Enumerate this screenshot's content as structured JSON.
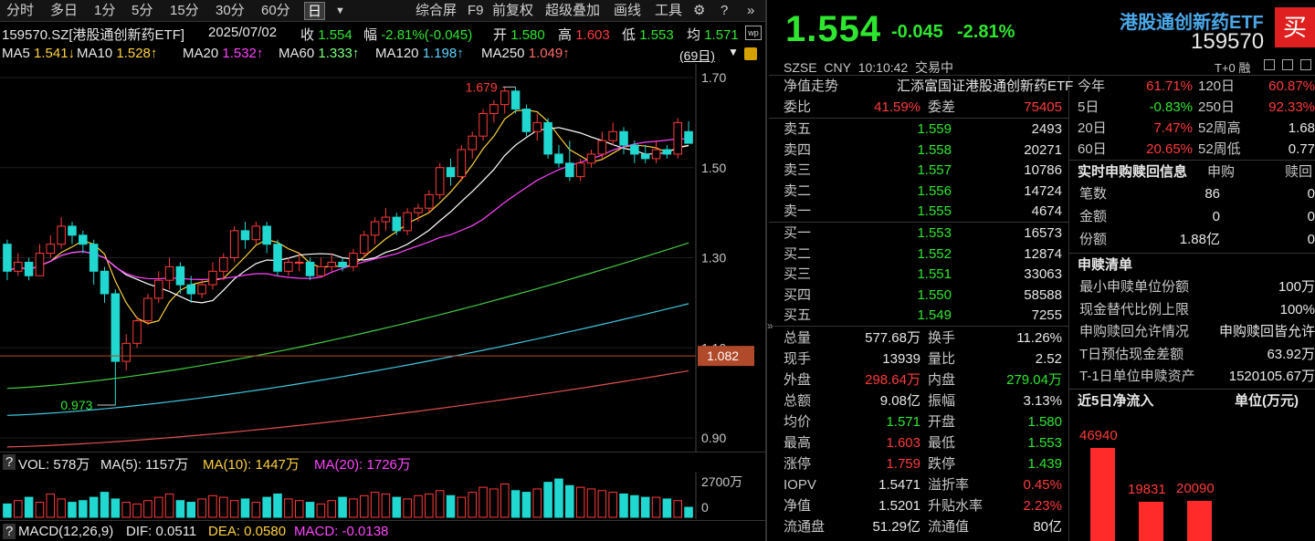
{
  "toolbar": {
    "tabs": [
      "分时",
      "多日",
      "1分",
      "5分",
      "15分",
      "30分",
      "60分",
      "日"
    ],
    "active": "日",
    "dropdown_icon": "triangle-down",
    "right": [
      "综合屏",
      "F9",
      "前复权",
      "超级叠加",
      "画线",
      "工具"
    ]
  },
  "info": {
    "code": "159570.SZ[港股通创新药ETF]",
    "date": "2025/07/02",
    "close_label": "收",
    "close": "1.554",
    "chg_label": "幅",
    "chg": "-2.81%(-0.045)",
    "open_label": "开",
    "open": "1.580",
    "high_label": "高",
    "high": "1.603",
    "low_label": "低",
    "low": "1.553",
    "avg_label": "均",
    "avg": "1.571"
  },
  "ma": [
    {
      "label": "MA5",
      "value": "1.541↓",
      "color": "#ffd23c"
    },
    {
      "label": "MA10",
      "value": "1.528↑",
      "color": "#ffd23c"
    },
    {
      "label": "MA20",
      "value": "1.532↑",
      "color": "#ff44ff"
    },
    {
      "label": "MA60",
      "value": "1.333↑",
      "color": "#7cff7c"
    },
    {
      "label": "MA120",
      "value": "1.198↑",
      "color": "#5fd3ff"
    },
    {
      "label": "MA250",
      "value": "1.049↑",
      "color": "#ff6b6b"
    }
  ],
  "period_badge": "(69日)",
  "chart": {
    "y_ticks": [
      "1.70",
      "1.50",
      "1.30",
      "1.10",
      "0.90"
    ],
    "high_mark": "1.679",
    "low_mark": "0.973",
    "price_line": "1.082"
  },
  "chart_data": {
    "type": "candlestick",
    "ylim": [
      0.9,
      1.72
    ],
    "candles": [
      [
        1.33,
        1.27,
        1.34,
        1.25
      ],
      [
        1.27,
        1.29,
        1.31,
        1.26
      ],
      [
        1.29,
        1.26,
        1.3,
        1.25
      ],
      [
        1.26,
        1.31,
        1.33,
        1.26
      ],
      [
        1.31,
        1.33,
        1.35,
        1.3
      ],
      [
        1.33,
        1.37,
        1.39,
        1.32
      ],
      [
        1.37,
        1.35,
        1.38,
        1.33
      ],
      [
        1.35,
        1.33,
        1.36,
        1.31
      ],
      [
        1.33,
        1.27,
        1.34,
        1.24
      ],
      [
        1.27,
        1.22,
        1.28,
        1.2
      ],
      [
        1.22,
        1.07,
        1.23,
        0.973
      ],
      [
        1.07,
        1.11,
        1.13,
        1.05
      ],
      [
        1.11,
        1.16,
        1.17,
        1.1
      ],
      [
        1.16,
        1.21,
        1.22,
        1.15
      ],
      [
        1.21,
        1.25,
        1.27,
        1.2
      ],
      [
        1.25,
        1.28,
        1.3,
        1.23
      ],
      [
        1.28,
        1.24,
        1.29,
        1.22
      ],
      [
        1.24,
        1.22,
        1.26,
        1.2
      ],
      [
        1.22,
        1.24,
        1.25,
        1.21
      ],
      [
        1.24,
        1.27,
        1.29,
        1.23
      ],
      [
        1.27,
        1.3,
        1.31,
        1.25
      ],
      [
        1.3,
        1.36,
        1.37,
        1.29
      ],
      [
        1.36,
        1.34,
        1.38,
        1.32
      ],
      [
        1.34,
        1.37,
        1.38,
        1.33
      ],
      [
        1.37,
        1.33,
        1.38,
        1.31
      ],
      [
        1.33,
        1.27,
        1.34,
        1.26
      ],
      [
        1.27,
        1.29,
        1.3,
        1.26
      ],
      [
        1.29,
        1.29,
        1.31,
        1.27
      ],
      [
        1.29,
        1.26,
        1.3,
        1.25
      ],
      [
        1.26,
        1.28,
        1.3,
        1.26
      ],
      [
        1.28,
        1.29,
        1.31,
        1.27
      ],
      [
        1.29,
        1.28,
        1.3,
        1.27
      ],
      [
        1.28,
        1.31,
        1.32,
        1.27
      ],
      [
        1.31,
        1.35,
        1.36,
        1.3
      ],
      [
        1.35,
        1.38,
        1.39,
        1.33
      ],
      [
        1.38,
        1.39,
        1.41,
        1.36
      ],
      [
        1.39,
        1.36,
        1.4,
        1.35
      ],
      [
        1.36,
        1.4,
        1.41,
        1.35
      ],
      [
        1.4,
        1.41,
        1.42,
        1.38
      ],
      [
        1.41,
        1.44,
        1.45,
        1.4
      ],
      [
        1.44,
        1.5,
        1.51,
        1.43
      ],
      [
        1.5,
        1.48,
        1.52,
        1.46
      ],
      [
        1.48,
        1.54,
        1.55,
        1.47
      ],
      [
        1.54,
        1.57,
        1.58,
        1.52
      ],
      [
        1.57,
        1.62,
        1.63,
        1.56
      ],
      [
        1.62,
        1.64,
        1.65,
        1.6
      ],
      [
        1.64,
        1.67,
        1.68,
        1.62
      ],
      [
        1.67,
        1.63,
        1.679,
        1.62
      ],
      [
        1.63,
        1.58,
        1.64,
        1.57
      ],
      [
        1.58,
        1.6,
        1.62,
        1.56
      ],
      [
        1.6,
        1.53,
        1.61,
        1.52
      ],
      [
        1.53,
        1.51,
        1.55,
        1.5
      ],
      [
        1.51,
        1.48,
        1.56,
        1.47
      ],
      [
        1.48,
        1.51,
        1.52,
        1.47
      ],
      [
        1.51,
        1.53,
        1.54,
        1.5
      ],
      [
        1.53,
        1.56,
        1.58,
        1.52
      ],
      [
        1.56,
        1.58,
        1.6,
        1.55
      ],
      [
        1.58,
        1.55,
        1.59,
        1.53
      ],
      [
        1.55,
        1.53,
        1.56,
        1.51
      ],
      [
        1.53,
        1.52,
        1.55,
        1.51
      ],
      [
        1.52,
        1.54,
        1.56,
        1.51
      ],
      [
        1.54,
        1.53,
        1.55,
        1.52
      ],
      [
        1.53,
        1.6,
        1.61,
        1.52
      ],
      [
        1.58,
        1.554,
        1.603,
        1.553
      ]
    ],
    "ma_lines": [
      {
        "name": "MA5",
        "color": "#ffd23c"
      },
      {
        "name": "MA10",
        "color": "#ffffff"
      },
      {
        "name": "MA20",
        "color": "#ff44ff"
      },
      {
        "name": "MA60",
        "color": "#44cc44",
        "from": 1.01,
        "to": 1.333
      },
      {
        "name": "MA120",
        "color": "#40c8e0",
        "from": 0.95,
        "to": 1.198
      },
      {
        "name": "MA250",
        "color": "#e05050",
        "from": 0.88,
        "to": 1.049
      }
    ],
    "volume": {
      "ylabel_top": "2700万",
      "ylabel_zero": "0",
      "values": [
        8,
        10,
        12,
        9,
        14,
        11,
        9,
        10,
        12,
        15,
        11,
        9,
        8,
        10,
        12,
        14,
        10,
        9,
        11,
        13,
        12,
        10,
        11,
        9,
        12,
        14,
        11,
        10,
        9,
        8,
        10,
        12,
        11,
        13,
        15,
        14,
        12,
        11,
        13,
        14,
        16,
        13,
        12,
        15,
        18,
        17,
        20,
        16,
        15,
        17,
        21,
        23,
        19,
        18,
        17,
        16,
        15,
        14,
        13,
        12,
        12,
        11,
        10,
        6
      ],
      "down_flags": [
        1,
        0,
        1,
        0,
        0,
        0,
        1,
        1,
        1,
        1,
        1,
        0,
        0,
        0,
        0,
        0,
        1,
        1,
        0,
        0,
        0,
        0,
        1,
        0,
        1,
        1,
        0,
        0,
        1,
        0,
        0,
        1,
        0,
        0,
        0,
        0,
        1,
        0,
        0,
        0,
        0,
        1,
        0,
        0,
        0,
        0,
        0,
        1,
        1,
        0,
        1,
        1,
        1,
        0,
        0,
        0,
        0,
        1,
        1,
        1,
        0,
        1,
        0,
        1
      ]
    }
  },
  "vol_header": {
    "q": "?",
    "vol": "VOL: 578万",
    "ma5": "MA(5): 1157万",
    "ma10": "MA(10): 1447万",
    "ma20": "MA(20): 1726万"
  },
  "macd": {
    "label": "MACD(12,26,9)",
    "dif": "DIF: 0.0511",
    "dea": "DEA: 0.0580",
    "macd": "MACD: -0.0138"
  },
  "quote": {
    "price": "1.554",
    "change": "-0.045",
    "pct": "-2.81%",
    "name": "港股通创新药ETF",
    "code": "159570",
    "buy_btn": "买",
    "market": "SZSE",
    "currency": "CNY",
    "time": "10:10:42",
    "state": "交易中",
    "t0": "T+0",
    "rong": "融"
  },
  "nav": {
    "label": "净值走势",
    "fund": "汇添富国证港股通创新药ETF"
  },
  "weibi": {
    "label": "委比",
    "value": "41.59%",
    "diff_label": "委差",
    "diff": "75405"
  },
  "asks": [
    {
      "label": "卖五",
      "price": "1.559",
      "vol": "2493"
    },
    {
      "label": "卖四",
      "price": "1.558",
      "vol": "20271"
    },
    {
      "label": "卖三",
      "price": "1.557",
      "vol": "10786"
    },
    {
      "label": "卖二",
      "price": "1.556",
      "vol": "14724"
    },
    {
      "label": "卖一",
      "price": "1.555",
      "vol": "4674"
    }
  ],
  "bids": [
    {
      "label": "买一",
      "price": "1.553",
      "vol": "16573"
    },
    {
      "label": "买二",
      "price": "1.552",
      "vol": "12874"
    },
    {
      "label": "买三",
      "price": "1.551",
      "vol": "33063"
    },
    {
      "label": "买四",
      "price": "1.550",
      "vol": "58588"
    },
    {
      "label": "买五",
      "price": "1.549",
      "vol": "7255"
    }
  ],
  "stats": [
    {
      "l1": "总量",
      "v1": "577.68万",
      "c1": "#e8e8e8",
      "l2": "换手",
      "v2": "11.26%",
      "c2": "#e8e8e8"
    },
    {
      "l1": "现手",
      "v1": "13939",
      "c1": "#e8e8e8",
      "l2": "量比",
      "v2": "2.52",
      "c2": "#e8e8e8"
    },
    {
      "l1": "外盘",
      "v1": "298.64万",
      "c1": "#ff3b3b",
      "l2": "内盘",
      "v2": "279.04万",
      "c2": "#2ee62e"
    },
    {
      "l1": "总额",
      "v1": "9.08亿",
      "c1": "#e8e8e8",
      "l2": "振幅",
      "v2": "3.13%",
      "c2": "#e8e8e8"
    },
    {
      "l1": "均价",
      "v1": "1.571",
      "c1": "#2ee62e",
      "l2": "开盘",
      "v2": "1.580",
      "c2": "#2ee62e"
    },
    {
      "l1": "最高",
      "v1": "1.603",
      "c1": "#ff3b3b",
      "l2": "最低",
      "v2": "1.553",
      "c2": "#2ee62e"
    },
    {
      "l1": "涨停",
      "v1": "1.759",
      "c1": "#ff3b3b",
      "l2": "跌停",
      "v2": "1.439",
      "c2": "#2ee62e"
    },
    {
      "l1": "IOPV",
      "v1": "1.5471",
      "c1": "#e8e8e8",
      "l2": "溢折率",
      "v2": "0.45%",
      "c2": "#ff3b3b"
    },
    {
      "l1": "净值",
      "v1": "1.5201",
      "c1": "#e8e8e8",
      "l2": "升贴水率",
      "v2": "2.23%",
      "c2": "#ff3b3b"
    },
    {
      "l1": "流通盘",
      "v1": "51.29亿",
      "c1": "#e8e8e8",
      "l2": "流通值",
      "v2": "80亿",
      "c2": "#e8e8e8"
    }
  ],
  "perf": [
    {
      "l1": "今年",
      "v1": "61.71%",
      "c1": "#ff3b3b",
      "l2": "120日",
      "v2": "60.87%",
      "c2": "#ff3b3b"
    },
    {
      "l1": "5日",
      "v1": "-0.83%",
      "c1": "#2ee62e",
      "l2": "250日",
      "v2": "92.33%",
      "c2": "#ff3b3b"
    },
    {
      "l1": "20日",
      "v1": "7.47%",
      "c1": "#ff3b3b",
      "l2": "52周高",
      "v2": "1.68",
      "c2": "#e8e8e8"
    },
    {
      "l1": "60日",
      "v1": "20.65%",
      "c1": "#ff3b3b",
      "l2": "52周低",
      "v2": "0.77",
      "c2": "#e8e8e8"
    }
  ],
  "sub": {
    "title": "实时申购赎回信息",
    "col1": "申购",
    "col2": "赎回",
    "rows": [
      {
        "label": "笔数",
        "v1": "86",
        "v2": "0"
      },
      {
        "label": "金额",
        "v1": "0",
        "v2": "0"
      },
      {
        "label": "份额",
        "v1": "1.88亿",
        "v2": "0"
      }
    ]
  },
  "list": {
    "title": "申赎清单",
    "rows": [
      {
        "label": "最小申赎单位份额",
        "value": "100万"
      },
      {
        "label": "现金替代比例上限",
        "value": "100%"
      },
      {
        "label": "申购赎回允许情况",
        "value": "申购赎回皆允许"
      },
      {
        "label": "T日预估现金差额",
        "value": "63.92万"
      },
      {
        "label": "T-1日单位申赎资产",
        "value": "1520105.67万"
      }
    ]
  },
  "flow": {
    "title": "近5日净流入",
    "unit": "单位(万元)",
    "bars": [
      {
        "value": 46940,
        "label": "46940"
      },
      {
        "value": 19831,
        "label": "19831"
      },
      {
        "value": 20090,
        "label": "20090"
      }
    ]
  }
}
